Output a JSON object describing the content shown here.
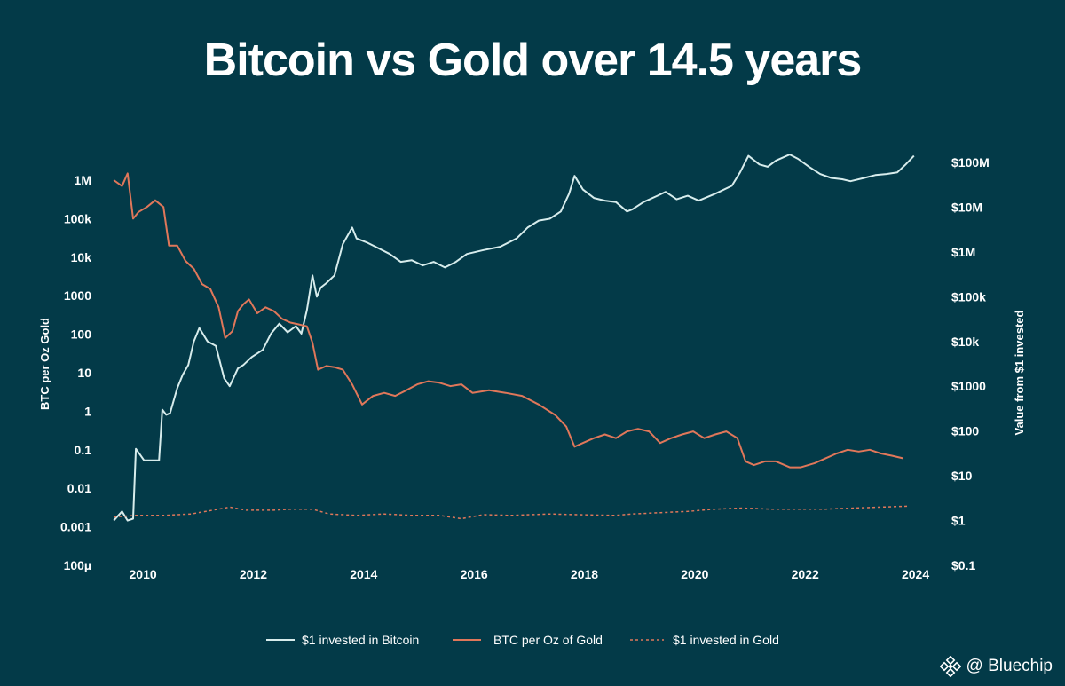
{
  "chart_data": {
    "type": "line",
    "title": "Bitcoin vs Gold over 14.5 years",
    "ylabel_left": "BTC per Oz Gold",
    "ylabel_right": "Value from $1 invested",
    "x_range": [
      2009.5,
      2024.2
    ],
    "x_ticks": [
      "2010",
      "2012",
      "2014",
      "2016",
      "2018",
      "2020",
      "2022",
      "2024"
    ],
    "x_tick_values": [
      2010,
      2012,
      2014,
      2016,
      2018,
      2020,
      2022,
      2024
    ],
    "y_left": {
      "scale": "log",
      "range": [
        0.0001,
        1000000
      ],
      "tick_labels": [
        "100µ",
        "0.001",
        "0.01",
        "0.1",
        "1",
        "10",
        "100",
        "1000",
        "10k",
        "100k",
        "1M"
      ],
      "tick_values": [
        0.0001,
        0.001,
        0.01,
        0.1,
        1,
        10,
        100,
        1000,
        10000,
        100000,
        1000000
      ]
    },
    "y_right": {
      "scale": "log",
      "range": [
        0.1,
        100000000
      ],
      "tick_labels": [
        "$0.1",
        "$1",
        "$10",
        "$100",
        "$1000",
        "$10k",
        "$100k",
        "$1M",
        "$10M",
        "$100M"
      ],
      "tick_values": [
        0.1,
        1,
        10,
        100,
        1000,
        10000,
        100000,
        1000000,
        10000000,
        100000000
      ]
    },
    "grid": false,
    "legend_position": "bottom-center",
    "series": [
      {
        "name": "$1 invested in Bitcoin",
        "axis": "right",
        "color": "#d7ecec",
        "style": "solid",
        "x": [
          2009.6,
          2009.75,
          2009.85,
          2009.95,
          2010.0,
          2010.15,
          2010.3,
          2010.42,
          2010.48,
          2010.55,
          2010.62,
          2010.75,
          2010.85,
          2010.95,
          2011.05,
          2011.15,
          2011.3,
          2011.45,
          2011.6,
          2011.7,
          2011.85,
          2011.95,
          2012.1,
          2012.3,
          2012.45,
          2012.6,
          2012.75,
          2012.9,
          2013.0,
          2013.1,
          2013.2,
          2013.28,
          2013.35,
          2013.45,
          2013.6,
          2013.75,
          2013.92,
          2014.0,
          2014.2,
          2014.4,
          2014.6,
          2014.8,
          2015.0,
          2015.2,
          2015.4,
          2015.6,
          2015.8,
          2016.0,
          2016.3,
          2016.6,
          2016.9,
          2017.1,
          2017.3,
          2017.5,
          2017.7,
          2017.85,
          2017.95,
          2018.1,
          2018.3,
          2018.5,
          2018.7,
          2018.9,
          2019.0,
          2019.2,
          2019.45,
          2019.6,
          2019.8,
          2020.0,
          2020.2,
          2020.5,
          2020.8,
          2020.95,
          2021.1,
          2021.3,
          2021.45,
          2021.6,
          2021.85,
          2022.0,
          2022.2,
          2022.4,
          2022.6,
          2022.8,
          2022.95,
          2023.2,
          2023.4,
          2023.6,
          2023.8,
          2023.95,
          2024.1
        ],
        "values": [
          1,
          1.6,
          1,
          1.1,
          40,
          22,
          22,
          22,
          300,
          230,
          250,
          900,
          1800,
          3000,
          10000,
          20000,
          10000,
          8000,
          1500,
          1000,
          2500,
          3000,
          4500,
          6500,
          15000,
          25000,
          16000,
          22000,
          15000,
          50000,
          300000,
          100000,
          160000,
          200000,
          300000,
          1500000,
          3500000,
          2000000,
          1600000,
          1200000,
          900000,
          600000,
          650000,
          500000,
          600000,
          450000,
          600000,
          900000,
          1100000,
          1300000,
          2000000,
          3500000,
          5000000,
          5500000,
          8000000,
          20000000,
          50000000,
          25000000,
          16000000,
          14000000,
          13000000,
          8000000,
          9000000,
          13000000,
          18000000,
          22000000,
          15000000,
          18000000,
          14000000,
          20000000,
          30000000,
          60000000,
          140000000,
          90000000,
          80000000,
          110000000,
          150000000,
          120000000,
          80000000,
          55000000,
          45000000,
          42000000,
          38000000,
          45000000,
          52000000,
          55000000,
          60000000,
          90000000,
          140000000
        ]
      },
      {
        "name": "BTC per Oz of Gold",
        "axis": "left",
        "color": "#e0775a",
        "style": "solid",
        "x": [
          2009.6,
          2009.75,
          2009.85,
          2009.95,
          2010.05,
          2010.2,
          2010.35,
          2010.5,
          2010.6,
          2010.75,
          2010.9,
          2011.05,
          2011.2,
          2011.35,
          2011.5,
          2011.62,
          2011.75,
          2011.85,
          2011.95,
          2012.05,
          2012.2,
          2012.35,
          2012.5,
          2012.65,
          2012.8,
          2012.95,
          2013.1,
          2013.2,
          2013.3,
          2013.45,
          2013.6,
          2013.75,
          2013.92,
          2014.1,
          2014.3,
          2014.5,
          2014.7,
          2014.9,
          2015.1,
          2015.3,
          2015.5,
          2015.7,
          2015.9,
          2016.1,
          2016.4,
          2016.7,
          2017.0,
          2017.3,
          2017.6,
          2017.8,
          2017.95,
          2018.1,
          2018.3,
          2018.5,
          2018.7,
          2018.9,
          2019.1,
          2019.3,
          2019.5,
          2019.7,
          2019.9,
          2020.1,
          2020.3,
          2020.5,
          2020.7,
          2020.9,
          2021.05,
          2021.2,
          2021.4,
          2021.6,
          2021.85,
          2022.05,
          2022.3,
          2022.5,
          2022.7,
          2022.9,
          2023.1,
          2023.3,
          2023.5,
          2023.7,
          2023.9
        ],
        "values": [
          1000000,
          700000,
          1500000,
          100000,
          150000,
          200000,
          300000,
          200000,
          20000,
          20000,
          8000,
          5000,
          2000,
          1500,
          500,
          80,
          120,
          400,
          600,
          800,
          350,
          500,
          400,
          250,
          200,
          180,
          160,
          60,
          12,
          15,
          14,
          12,
          5,
          1.5,
          2.5,
          3,
          2.5,
          3.5,
          5,
          6,
          5.5,
          4.5,
          5,
          3,
          3.5,
          3,
          2.5,
          1.5,
          0.8,
          0.4,
          0.12,
          0.15,
          0.2,
          0.25,
          0.2,
          0.3,
          0.35,
          0.3,
          0.15,
          0.2,
          0.25,
          0.3,
          0.2,
          0.25,
          0.3,
          0.2,
          0.05,
          0.04,
          0.05,
          0.05,
          0.035,
          0.035,
          0.045,
          0.06,
          0.08,
          0.1,
          0.09,
          0.1,
          0.08,
          0.07,
          0.06
        ]
      },
      {
        "name": "$1 invested in Gold",
        "axis": "right",
        "color": "#e0775a",
        "style": "dashed",
        "x": [
          2009.6,
          2010.0,
          2010.5,
          2011.0,
          2011.5,
          2011.7,
          2012.0,
          2012.5,
          2012.8,
          2013.2,
          2013.5,
          2014.0,
          2014.5,
          2015.0,
          2015.5,
          2015.9,
          2016.3,
          2016.8,
          2017.5,
          2018.0,
          2018.7,
          2019.0,
          2019.5,
          2020.0,
          2020.5,
          2021.0,
          2021.5,
          2022.0,
          2022.5,
          2023.0,
          2023.5,
          2024.0
        ],
        "values": [
          1.2,
          1.3,
          1.3,
          1.4,
          1.8,
          2.0,
          1.7,
          1.7,
          1.8,
          1.8,
          1.4,
          1.3,
          1.4,
          1.3,
          1.3,
          1.1,
          1.35,
          1.3,
          1.4,
          1.35,
          1.3,
          1.4,
          1.5,
          1.6,
          1.8,
          1.9,
          1.8,
          1.8,
          1.8,
          1.9,
          2.0,
          2.1
        ]
      }
    ]
  },
  "watermark": {
    "text": "@ Bluechip",
    "icon": "binance-diamond-icon"
  }
}
